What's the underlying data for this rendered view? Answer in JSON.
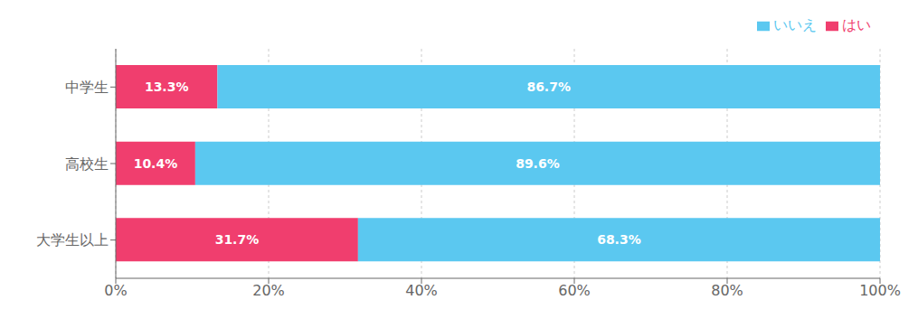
{
  "chart_data": {
    "type": "bar",
    "orientation": "horizontal",
    "stacked": true,
    "categories": [
      "中学生",
      "高校生",
      "大学生以上"
    ],
    "series": [
      {
        "name": "はい",
        "color": "#F03E6E",
        "values": [
          13.3,
          10.4,
          31.7
        ],
        "value_labels": [
          "13.3%",
          "10.4%",
          "31.7%"
        ]
      },
      {
        "name": "いいえ",
        "color": "#5BC8F0",
        "values": [
          86.7,
          89.6,
          68.3
        ],
        "value_labels": [
          "86.7%",
          "89.6%",
          "68.3%"
        ]
      }
    ],
    "xlim": [
      0,
      100
    ],
    "xticks": [
      {
        "value": 0,
        "label": "0%"
      },
      {
        "value": 20,
        "label": "20%"
      },
      {
        "value": 40,
        "label": "40%"
      },
      {
        "value": 60,
        "label": "60%"
      },
      {
        "value": 80,
        "label": "80%"
      },
      {
        "value": 100,
        "label": "100%"
      }
    ],
    "grid": true,
    "legend": "upper right",
    "data_labels": true
  }
}
